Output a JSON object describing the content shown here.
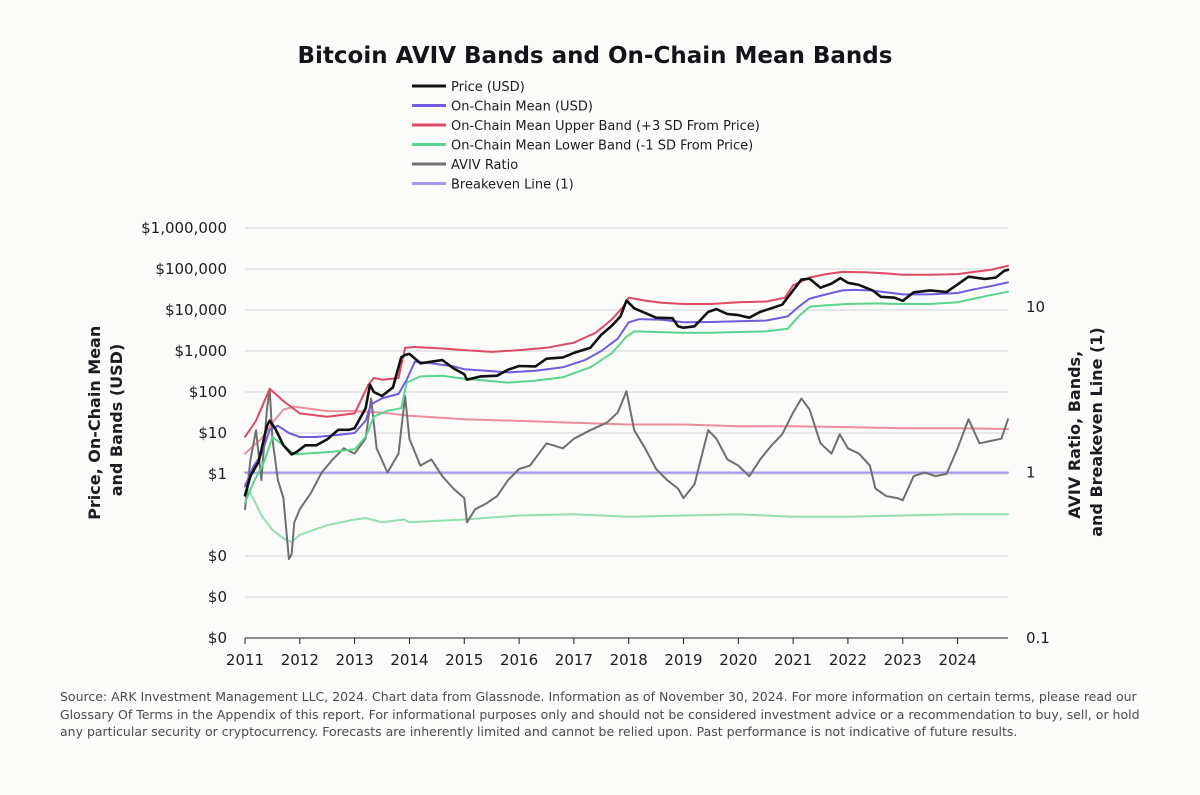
{
  "chart_data": {
    "type": "line",
    "title": "Bitcoin AVIV Bands and On-Chain Mean Bands",
    "y_left_label_lines": [
      "Price, On-Chain Mean",
      "and Bands (USD)"
    ],
    "y_right_label_lines": [
      "AVIV Ratio, Bands,",
      "and Breakeven Line (1)"
    ],
    "y_left_scale": "log",
    "y_left_range": [
      0.0001,
      1000000
    ],
    "y_left_ticks": [
      {
        "value": 0.0001,
        "label": "$0"
      },
      {
        "value": 0.001,
        "label": "$0"
      },
      {
        "value": 0.01,
        "label": "$0"
      },
      {
        "value": 1,
        "label": "$1"
      },
      {
        "value": 10,
        "label": "$10"
      },
      {
        "value": 100,
        "label": "$100"
      },
      {
        "value": 1000,
        "label": "$1,000"
      },
      {
        "value": 10000,
        "label": "$10,000"
      },
      {
        "value": 100000,
        "label": "$100,000"
      },
      {
        "value": 1000000,
        "label": "$1,000,000"
      }
    ],
    "y_right_scale": "log",
    "y_right_range": [
      0.1,
      30
    ],
    "y_right_ticks": [
      {
        "value": 10,
        "label": "10"
      },
      {
        "value": 1,
        "label": "1"
      },
      {
        "value": 0.1,
        "label": "0.1"
      }
    ],
    "x_range": [
      2011.0,
      2024.92
    ],
    "x_ticks": [
      "2011",
      "2012",
      "2013",
      "2014",
      "2015",
      "2016",
      "2017",
      "2018",
      "2019",
      "2020",
      "2021",
      "2022",
      "2023",
      "2024"
    ],
    "legend_position": "top-center",
    "colors": {
      "price": "#111111",
      "mean": "#6f5ce0",
      "upper": "#de4a63",
      "lower": "#58d68d",
      "aviv": "#6f6f6f",
      "breakeven": "#a795ee",
      "aviv_upper": "#ea8f9c",
      "aviv_lower": "#92e0b0"
    },
    "series": [
      {
        "key": "price",
        "name": "Price (USD)",
        "axis": "left",
        "x": [
          2011.0,
          2011.1,
          2011.25,
          2011.4,
          2011.45,
          2011.55,
          2011.7,
          2011.85,
          2011.95,
          2012.1,
          2012.3,
          2012.5,
          2012.7,
          2012.9,
          2013.0,
          2013.2,
          2013.28,
          2013.35,
          2013.5,
          2013.7,
          2013.85,
          2013.92,
          2014.0,
          2014.2,
          2014.4,
          2014.6,
          2014.8,
          2015.0,
          2015.05,
          2015.3,
          2015.6,
          2015.8,
          2016.0,
          2016.3,
          2016.5,
          2016.8,
          2017.0,
          2017.3,
          2017.5,
          2017.7,
          2017.85,
          2017.96,
          2018.1,
          2018.3,
          2018.5,
          2018.8,
          2018.9,
          2019.0,
          2019.2,
          2019.45,
          2019.6,
          2019.8,
          2020.0,
          2020.2,
          2020.4,
          2020.6,
          2020.8,
          2021.0,
          2021.15,
          2021.3,
          2021.5,
          2021.7,
          2021.86,
          2022.0,
          2022.2,
          2022.45,
          2022.6,
          2022.85,
          2023.0,
          2023.2,
          2023.5,
          2023.8,
          2024.0,
          2024.2,
          2024.5,
          2024.7,
          2024.85,
          2024.92
        ],
        "y": [
          0.3,
          0.9,
          2,
          15,
          20,
          13,
          5,
          3,
          3.5,
          5,
          5,
          7,
          12,
          12,
          13,
          40,
          150,
          100,
          80,
          130,
          700,
          800,
          850,
          500,
          550,
          600,
          380,
          270,
          200,
          240,
          250,
          350,
          430,
          420,
          650,
          700,
          900,
          1200,
          2500,
          4200,
          7000,
          17000,
          11000,
          8500,
          6500,
          6300,
          4000,
          3700,
          4000,
          9000,
          10500,
          8000,
          7500,
          6500,
          9000,
          11000,
          13500,
          30000,
          55000,
          58000,
          35000,
          44000,
          60000,
          46000,
          41000,
          30000,
          21000,
          20000,
          16800,
          27000,
          30000,
          27500,
          42000,
          65000,
          57000,
          62000,
          90000,
          96000
        ]
      },
      {
        "key": "mean",
        "name": "On-Chain Mean (USD)",
        "axis": "left",
        "x": [
          2011.0,
          2011.15,
          2011.3,
          2011.45,
          2011.6,
          2011.8,
          2012.0,
          2012.3,
          2012.7,
          2013.0,
          2013.2,
          2013.3,
          2013.5,
          2013.8,
          2013.95,
          2014.1,
          2014.4,
          2014.8,
          2015.0,
          2015.4,
          2015.8,
          2016.3,
          2016.8,
          2017.2,
          2017.5,
          2017.8,
          2018.0,
          2018.2,
          2018.6,
          2018.9,
          2019.0,
          2019.5,
          2020.0,
          2020.5,
          2020.9,
          2021.1,
          2021.3,
          2021.6,
          2021.9,
          2022.1,
          2022.4,
          2022.8,
          2023.0,
          2023.5,
          2024.0,
          2024.3,
          2024.6,
          2024.92
        ],
        "y": [
          0.5,
          1.5,
          3,
          12,
          15,
          10,
          8,
          8,
          9,
          10,
          20,
          50,
          70,
          90,
          200,
          550,
          500,
          420,
          360,
          330,
          300,
          330,
          400,
          600,
          1000,
          2000,
          5000,
          6000,
          5800,
          5200,
          5000,
          5100,
          5300,
          5500,
          7000,
          12000,
          19000,
          24000,
          30000,
          31000,
          30000,
          26000,
          24000,
          24000,
          26000,
          32000,
          38000,
          47000
        ]
      },
      {
        "key": "upper",
        "name": "On-Chain Mean Upper Band (+3 SD From Price)",
        "axis": "left",
        "x": [
          2011.0,
          2011.2,
          2011.45,
          2011.7,
          2012.0,
          2012.5,
          2013.0,
          2013.25,
          2013.35,
          2013.5,
          2013.8,
          2013.92,
          2014.1,
          2014.6,
          2015.0,
          2015.5,
          2016.0,
          2016.5,
          2017.0,
          2017.4,
          2017.7,
          2017.9,
          2018.0,
          2018.3,
          2018.6,
          2019.0,
          2019.5,
          2020.0,
          2020.5,
          2020.85,
          2021.0,
          2021.3,
          2021.6,
          2021.9,
          2022.3,
          2022.7,
          2023.0,
          2023.5,
          2024.0,
          2024.3,
          2024.6,
          2024.92
        ],
        "y": [
          8,
          20,
          120,
          60,
          30,
          25,
          30,
          150,
          220,
          200,
          220,
          1200,
          1250,
          1150,
          1050,
          950,
          1050,
          1200,
          1600,
          2800,
          6000,
          12000,
          20000,
          17000,
          15000,
          14000,
          14000,
          15500,
          16000,
          20000,
          40000,
          62000,
          75000,
          85000,
          83000,
          78000,
          72000,
          72000,
          75000,
          85000,
          95000,
          120000
        ]
      },
      {
        "key": "lower",
        "name": "On-Chain Mean Lower Band (-1 SD From Price)",
        "axis": "left",
        "x": [
          2011.0,
          2011.15,
          2011.35,
          2011.5,
          2011.7,
          2011.9,
          2012.2,
          2012.6,
          2013.0,
          2013.2,
          2013.35,
          2013.6,
          2013.85,
          2013.95,
          2014.2,
          2014.6,
          2015.0,
          2015.4,
          2015.8,
          2016.3,
          2016.8,
          2017.3,
          2017.7,
          2017.95,
          2018.1,
          2018.5,
          2019.0,
          2019.5,
          2020.0,
          2020.5,
          2020.9,
          2021.1,
          2021.3,
          2021.6,
          2022.0,
          2022.5,
          2023.0,
          2023.5,
          2024.0,
          2024.3,
          2024.6,
          2024.92
        ],
        "y": [
          0.2,
          0.6,
          2,
          8,
          5,
          3,
          3.2,
          3.5,
          4,
          8,
          25,
          35,
          40,
          170,
          240,
          250,
          210,
          190,
          170,
          190,
          230,
          400,
          900,
          2200,
          3000,
          2900,
          2800,
          2800,
          2900,
          3000,
          3500,
          7000,
          12000,
          13000,
          14000,
          14500,
          14000,
          14000,
          15500,
          19000,
          23000,
          28000
        ]
      },
      {
        "key": "aviv",
        "name": "AVIV Ratio",
        "axis": "right",
        "x": [
          2011.0,
          2011.1,
          2011.2,
          2011.3,
          2011.4,
          2011.45,
          2011.5,
          2011.6,
          2011.7,
          2011.8,
          2011.85,
          2011.9,
          2012.0,
          2012.2,
          2012.4,
          2012.6,
          2012.8,
          2013.0,
          2013.2,
          2013.3,
          2013.4,
          2013.6,
          2013.8,
          2013.92,
          2014.0,
          2014.2,
          2014.4,
          2014.6,
          2014.8,
          2015.0,
          2015.05,
          2015.2,
          2015.4,
          2015.6,
          2015.8,
          2016.0,
          2016.2,
          2016.5,
          2016.8,
          2017.0,
          2017.3,
          2017.6,
          2017.8,
          2017.96,
          2018.1,
          2018.3,
          2018.5,
          2018.7,
          2018.9,
          2019.0,
          2019.2,
          2019.45,
          2019.6,
          2019.8,
          2020.0,
          2020.2,
          2020.4,
          2020.6,
          2020.8,
          2021.0,
          2021.15,
          2021.3,
          2021.5,
          2021.7,
          2021.85,
          2022.0,
          2022.2,
          2022.4,
          2022.5,
          2022.7,
          2022.9,
          2023.0,
          2023.2,
          2023.4,
          2023.6,
          2023.8,
          2024.0,
          2024.2,
          2024.4,
          2024.6,
          2024.8,
          2024.92
        ],
        "y": [
          0.6,
          1.2,
          1.8,
          0.9,
          2.4,
          3.2,
          1.6,
          0.9,
          0.7,
          0.3,
          0.32,
          0.5,
          0.6,
          0.75,
          1,
          1.2,
          1.4,
          1.3,
          1.6,
          2.8,
          1.4,
          1,
          1.3,
          2.9,
          1.6,
          1.1,
          1.2,
          0.95,
          0.8,
          0.7,
          0.5,
          0.6,
          0.65,
          0.72,
          0.9,
          1.05,
          1.1,
          1.5,
          1.4,
          1.6,
          1.8,
          2.0,
          2.3,
          3.1,
          1.8,
          1.4,
          1.05,
          0.9,
          0.8,
          0.7,
          0.85,
          1.8,
          1.6,
          1.2,
          1.1,
          0.95,
          1.2,
          1.45,
          1.7,
          2.3,
          2.8,
          2.4,
          1.5,
          1.3,
          1.7,
          1.4,
          1.3,
          1.1,
          0.8,
          0.72,
          0.7,
          0.68,
          0.95,
          1.0,
          0.95,
          0.98,
          1.4,
          2.1,
          1.5,
          1.55,
          1.6,
          2.1
        ]
      },
      {
        "key": "breakeven",
        "name": "Breakeven Line (1)",
        "axis": "right",
        "x": [
          2011.0,
          2024.92
        ],
        "y": [
          1,
          1
        ]
      },
      {
        "key": "aviv_upper",
        "name": "",
        "axis": "right",
        "x": [
          2011.0,
          2011.3,
          2011.5,
          2011.7,
          2011.9,
          2012.5,
          2013.0,
          2013.5,
          2014.0,
          2015.0,
          2016.0,
          2017.0,
          2018.0,
          2019.0,
          2020.0,
          2021.0,
          2022.0,
          2023.0,
          2024.0,
          2024.92
        ],
        "y": [
          1.3,
          1.6,
          2,
          2.4,
          2.5,
          2.35,
          2.35,
          2.3,
          2.2,
          2.1,
          2.05,
          2.0,
          1.95,
          1.95,
          1.9,
          1.9,
          1.88,
          1.85,
          1.85,
          1.83
        ]
      },
      {
        "key": "aviv_lower",
        "name": "",
        "axis": "right",
        "x": [
          2011.0,
          2011.15,
          2011.3,
          2011.5,
          2011.7,
          2011.85,
          2012.0,
          2012.5,
          2013.0,
          2013.2,
          2013.5,
          2013.9,
          2014.0,
          2015.0,
          2016.0,
          2017.0,
          2018.0,
          2019.0,
          2020.0,
          2021.0,
          2022.0,
          2023.0,
          2024.0,
          2024.92
        ],
        "y": [
          0.85,
          0.7,
          0.55,
          0.45,
          0.4,
          0.38,
          0.42,
          0.48,
          0.52,
          0.53,
          0.5,
          0.52,
          0.5,
          0.52,
          0.55,
          0.56,
          0.54,
          0.55,
          0.56,
          0.54,
          0.54,
          0.55,
          0.56,
          0.56
        ]
      }
    ],
    "legend": [
      {
        "key": "price",
        "label": "Price (USD)"
      },
      {
        "key": "mean",
        "label": "On-Chain Mean (USD)"
      },
      {
        "key": "upper",
        "label": "On-Chain Mean Upper Band (+3 SD From Price)"
      },
      {
        "key": "lower",
        "label": "On-Chain Mean Lower Band (-1 SD From Price)"
      },
      {
        "key": "aviv",
        "label": "AVIV Ratio"
      },
      {
        "key": "breakeven",
        "label": "Breakeven Line (1)"
      }
    ]
  },
  "source_note": "Source: ARK Investment Management LLC, 2024. Chart data from Glassnode. Information as of November 30, 2024. For more information on certain terms, please read our Glossary Of Terms in the Appendix of this report. For informational purposes only and should not be considered investment advice or a recommendation to buy, sell, or hold any particular security or cryptocurrency. Forecasts are inherently limited and cannot be relied upon. Past performance is not indicative of future results."
}
